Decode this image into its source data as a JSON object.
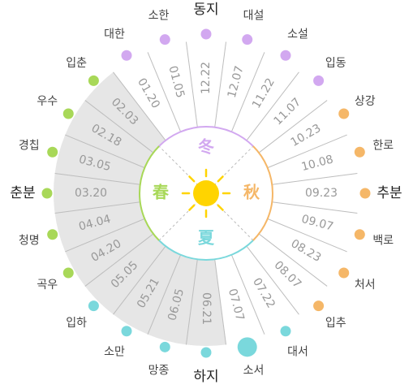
{
  "terms": [
    {
      "name": "동지",
      "date": "12.22",
      "color": "#d2a8f0"
    },
    {
      "name": "소한",
      "date": "01.05",
      "color": "#d2a8f0"
    },
    {
      "name": "대한",
      "date": "01.20",
      "color": "#d2a8f0"
    },
    {
      "name": "입춘",
      "date": "02.03",
      "color": "#a8d858"
    },
    {
      "name": "우수",
      "date": "02.18",
      "color": "#a8d858"
    },
    {
      "name": "경칩",
      "date": "03.05",
      "color": "#a8d858"
    },
    {
      "name": "춘분",
      "date": "03.20",
      "color": "#a8d858"
    },
    {
      "name": "청명",
      "date": "04.04",
      "color": "#a8d858"
    },
    {
      "name": "곡우",
      "date": "04.20",
      "color": "#a8d858"
    },
    {
      "name": "입하",
      "date": "05.05",
      "color": "#7ad8dc"
    },
    {
      "name": "소만",
      "date": "05.21",
      "color": "#7ad8dc"
    },
    {
      "name": "망종",
      "date": "06.05",
      "color": "#7ad8dc"
    },
    {
      "name": "하지",
      "date": "06.21",
      "color": "#7ad8dc"
    },
    {
      "name": "소서",
      "date": "07.07",
      "color": "#7ad8dc"
    },
    {
      "name": "대서",
      "date": "07.22",
      "color": "#7ad8dc"
    },
    {
      "name": "입추",
      "date": "08.07",
      "color": "#f5b768"
    },
    {
      "name": "처서",
      "date": "08.23",
      "color": "#f5b768"
    },
    {
      "name": "백로",
      "date": "09.07",
      "color": "#f5b768"
    },
    {
      "name": "추분",
      "date": "09.23",
      "color": "#f5b768"
    },
    {
      "name": "한로",
      "date": "10.08",
      "color": "#f5b768"
    },
    {
      "name": "상강",
      "date": "10.23",
      "color": "#f5b768"
    },
    {
      "name": "입동",
      "date": "11.07",
      "color": "#d2a8f0"
    },
    {
      "name": "소설",
      "date": "11.22",
      "color": "#d2a8f0"
    },
    {
      "name": "대설",
      "date": "12.07",
      "color": "#d2a8f0"
    }
  ],
  "seasons": [
    {
      "name": "冬",
      "color": "#d2a8f0"
    },
    {
      "name": "春",
      "color": "#a8d858"
    },
    {
      "name": "夏",
      "color": "#7ad8dc"
    },
    {
      "name": "秋",
      "color": "#f5b768"
    }
  ]
}
